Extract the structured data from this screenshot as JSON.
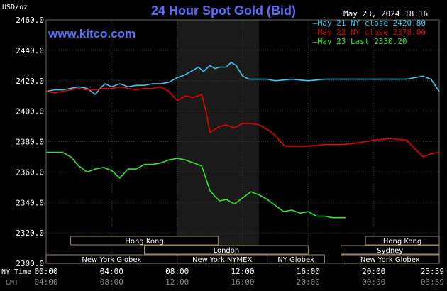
{
  "chart_data": {
    "type": "line",
    "title": "24 Hour Spot Gold (Bid)",
    "source": "www.kitco.com",
    "unit_label": "USD/oz",
    "timestamp": "May 23, 2024 18:16",
    "y_ticks": [
      "2460.0",
      "2440.0",
      "2420.0",
      "2400.0",
      "2380.0",
      "2360.0",
      "2340.0",
      "2320.0",
      "2300.0"
    ],
    "ylim": [
      2300,
      2460
    ],
    "xlim": [
      0,
      24
    ],
    "grid": true,
    "legend_position": "top-right",
    "x_row_ny_label": "NY Time",
    "x_row_gmt_label": "GMT",
    "x_ticks_ny": [
      "00:00",
      "04:00",
      "08:00",
      "12:00",
      "16:00",
      "20:00",
      "23:59"
    ],
    "x_ticks_gmt": [
      "04:00",
      "08:00",
      "12:00",
      "16:00",
      "20:00",
      "00:00",
      "03:59"
    ],
    "x_tick_hours": [
      0,
      4,
      8,
      12,
      16,
      20,
      23.98
    ],
    "shaded_session_hours": [
      8,
      13
    ],
    "series": [
      {
        "name": "May 21 NY close 2420.80",
        "color": "#39c8f0",
        "x": [
          0,
          0.5,
          1,
          1.5,
          2,
          2.5,
          3,
          3.3,
          3.6,
          4,
          4.5,
          5,
          5.5,
          6,
          6.5,
          7,
          7.5,
          8,
          8.5,
          9,
          9.3,
          9.6,
          10,
          10.3,
          10.6,
          11,
          11.3,
          11.6,
          12,
          12.4,
          12.8,
          13.5,
          14,
          15,
          16,
          17,
          18,
          19,
          20,
          21,
          22,
          23,
          23.5,
          24
        ],
        "y": [
          2413,
          2414,
          2414,
          2415,
          2416,
          2415,
          2411,
          2415,
          2418,
          2416,
          2418,
          2416,
          2417,
          2417,
          2418,
          2418,
          2419,
          2422,
          2424,
          2427,
          2429,
          2426,
          2430,
          2428,
          2429,
          2429,
          2432,
          2430,
          2423,
          2421,
          2421,
          2421,
          2420,
          2421,
          2420,
          2421,
          2421,
          2421,
          2421,
          2421,
          2421,
          2423,
          2421,
          2413
        ]
      },
      {
        "name": "May 22 NY close 2378.00",
        "color": "#e60000",
        "x": [
          0,
          0.5,
          1,
          1.5,
          2,
          2.5,
          3,
          3.5,
          4,
          4.5,
          5,
          5.5,
          6,
          6.5,
          7,
          7.5,
          8,
          8.5,
          9,
          9.5,
          9.8,
          10,
          10.3,
          10.6,
          11,
          11.5,
          12,
          12.5,
          13,
          13.5,
          14,
          14.3,
          14.6,
          15,
          16,
          17,
          18,
          19,
          20,
          21,
          22,
          23,
          23.5,
          24
        ],
        "y": [
          2413,
          2412,
          2413,
          2414,
          2415,
          2414,
          2414,
          2415,
          2415,
          2416,
          2415,
          2414,
          2415,
          2415,
          2416,
          2413,
          2407,
          2410,
          2409,
          2411,
          2398,
          2386,
          2388,
          2390,
          2391,
          2389,
          2392,
          2392,
          2391,
          2388,
          2384,
          2380,
          2377,
          2377,
          2377,
          2378,
          2378,
          2379,
          2381,
          2382,
          2381,
          2370,
          2372,
          2373
        ]
      },
      {
        "name": "May 23 Last 2330.20",
        "color": "#2ee82e",
        "x": [
          0,
          0.5,
          1,
          1.5,
          2,
          2.5,
          3,
          3.5,
          4,
          4.5,
          5,
          5.5,
          6,
          6.5,
          7,
          7.5,
          8,
          8.5,
          9,
          9.5,
          10,
          10.3,
          10.6,
          11,
          11.5,
          12,
          12.5,
          13,
          13.5,
          14,
          14.5,
          15,
          15.5,
          16,
          16.5,
          17,
          17.5,
          18.3
        ],
        "y": [
          2373,
          2373,
          2373,
          2370,
          2364,
          2360,
          2362,
          2363,
          2361,
          2356,
          2362,
          2362,
          2365,
          2365,
          2366,
          2368,
          2369,
          2368,
          2366,
          2364,
          2348,
          2344,
          2341,
          2342,
          2339,
          2343,
          2347,
          2345,
          2342,
          2338,
          2334,
          2335,
          2333,
          2334,
          2331,
          2331,
          2330,
          2330
        ]
      }
    ],
    "market_sessions": [
      {
        "label": "Hong Kong",
        "row": 0,
        "start": 1.5,
        "end": 10.5
      },
      {
        "label": "Hong Kong",
        "row": 0,
        "start": 19.5,
        "end": 24
      },
      {
        "label": "London",
        "row": 1,
        "start": 6.0,
        "end": 16.0
      },
      {
        "label": "Sydney",
        "row": 1,
        "start": 18.0,
        "end": 24
      },
      {
        "label": "New York Globex",
        "row": 2,
        "start": 0,
        "end": 8.0
      },
      {
        "label": "New York NYMEX",
        "row": 2,
        "start": 8.0,
        "end": 13.5
      },
      {
        "label": "NY Globex",
        "row": 2,
        "start": 13.5,
        "end": 17.0
      },
      {
        "label": "New York Globex",
        "row": 2,
        "start": 18.0,
        "end": 24
      }
    ]
  }
}
